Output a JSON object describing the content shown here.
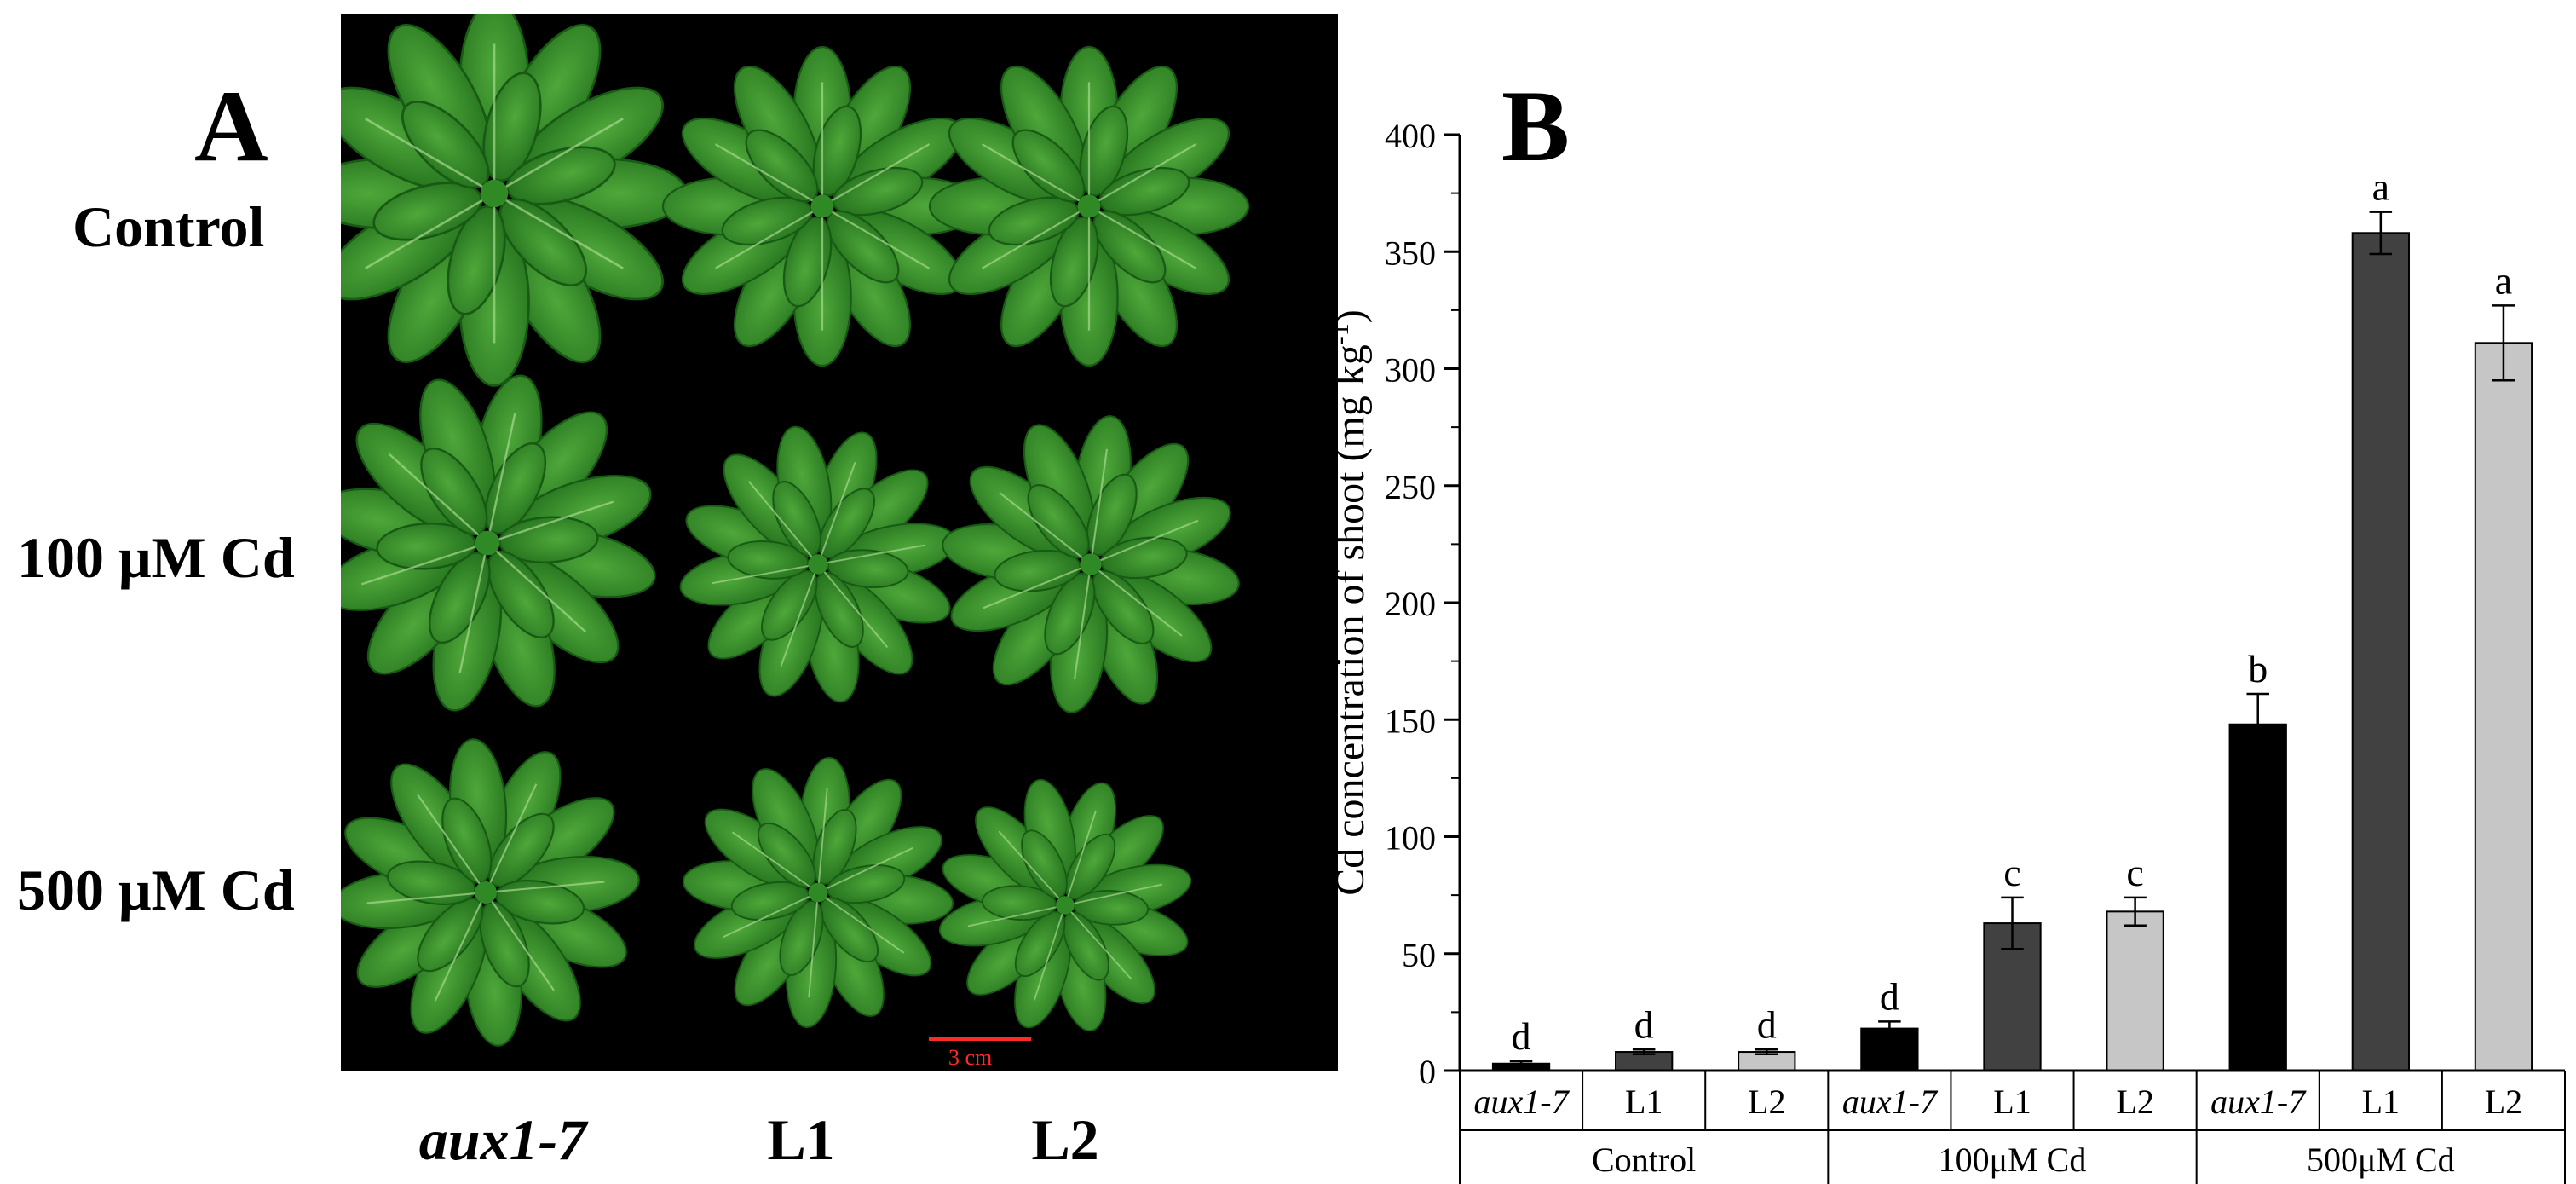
{
  "panel_a": {
    "letter": "A",
    "row_labels": [
      "Control",
      "100 μM Cd",
      "500 μM Cd"
    ],
    "col_labels": [
      "aux1-7",
      "L1",
      "L2"
    ],
    "scale_bar": "3 cm"
  },
  "panel_b": {
    "letter": "B"
  },
  "chart_data": {
    "type": "bar",
    "ylabel": "Cd concentration of shoot (mg kg",
    "ylabel_sup": "-1",
    "ylabel_close": ")",
    "ylim": [
      0,
      400
    ],
    "yticks": [
      "0",
      "50",
      "100",
      "150",
      "200",
      "250",
      "300",
      "350",
      "400"
    ],
    "groups": [
      "Control",
      "100μM Cd",
      "500μM Cd"
    ],
    "categories": [
      "aux1-7",
      "L1",
      "L2"
    ],
    "category_italic": [
      true,
      false,
      false
    ],
    "grid": false,
    "series": [
      {
        "name": "aux1-7",
        "color": "#000000",
        "values": [
          3,
          18,
          148
        ],
        "errors": [
          1,
          3,
          13
        ],
        "letters": [
          "d",
          "d",
          "b"
        ]
      },
      {
        "name": "L1",
        "color": "#414141",
        "values": [
          8,
          63,
          358
        ],
        "errors": [
          1,
          11,
          9
        ],
        "letters": [
          "d",
          "c",
          "a"
        ]
      },
      {
        "name": "L2",
        "color": "#c6c6c6",
        "values": [
          8,
          68,
          311
        ],
        "errors": [
          1,
          6,
          16
        ],
        "letters": [
          "d",
          "c",
          "a"
        ]
      }
    ]
  }
}
